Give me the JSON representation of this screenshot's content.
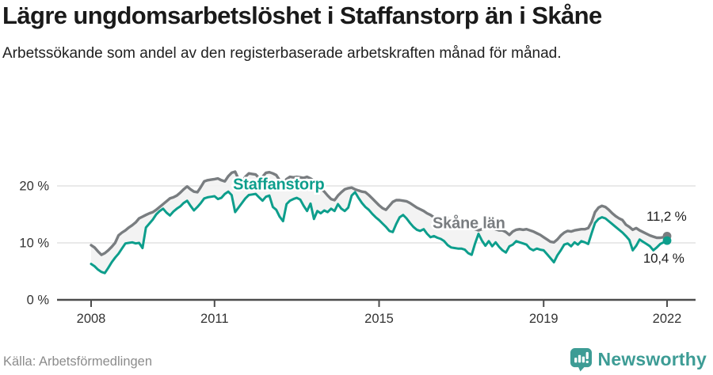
{
  "header": {
    "title": "Lägre ungdomsarbetslöshet i Staffanstorp än i Skåne",
    "subtitle": "Arbetssökande som andel av den registerbaserade arbetskraften månad för månad."
  },
  "footer": {
    "source": "Källa: Arbetsförmedlingen",
    "brand": "Newsworthy",
    "brand_icon": "newsworthy-chart-bubble-icon"
  },
  "colors": {
    "staffanstorp": "#0d9e8c",
    "skane": "#797d80",
    "band": "#f2f2f2",
    "grid": "#dcdcdc",
    "axis": "#4c4c4c",
    "tick_text": "#333333",
    "value_text": "#1d1d1d",
    "brand": "#3d9c95"
  },
  "chart_data": {
    "type": "line",
    "title": "Lägre ungdomsarbetslöshet i Staffanstorp än i Skåne",
    "subtitle": "Arbetssökande som andel av den registerbaserade arbetskraften månad för månad.",
    "x_unit": "month",
    "x_start": "2008-01",
    "x_end": "2022-01",
    "points_per_series": 169,
    "xlim_years": [
      2007.15,
      2022.7
    ],
    "ylim": [
      0,
      24
    ],
    "grid": "horizontal",
    "x_ticks": [
      {
        "value": 2008,
        "label": "2008"
      },
      {
        "value": 2011,
        "label": "2011"
      },
      {
        "value": 2015,
        "label": "2015"
      },
      {
        "value": 2019,
        "label": "2019"
      },
      {
        "value": 2022,
        "label": "2022"
      }
    ],
    "y_ticks": [
      {
        "value": 0,
        "label": "0 %"
      },
      {
        "value": 10,
        "label": "10 %"
      },
      {
        "value": 20,
        "label": "20 %"
      }
    ],
    "series": [
      {
        "name": "Skåne län",
        "color_key": "skane",
        "end_value_label": "11,2 %",
        "end_value": 11.2,
        "values": [
          9.6,
          9.2,
          8.5,
          7.9,
          8.2,
          8.7,
          9.3,
          10.0,
          11.3,
          11.8,
          12.2,
          12.7,
          13.1,
          13.6,
          14.3,
          14.6,
          14.9,
          15.2,
          15.4,
          15.8,
          16.3,
          16.8,
          17.3,
          17.8,
          18.0,
          18.3,
          18.8,
          19.4,
          19.9,
          19.4,
          19.0,
          18.9,
          19.8,
          20.8,
          21.0,
          21.1,
          21.2,
          21.3,
          21.0,
          20.8,
          21.7,
          22.3,
          22.5,
          21.2,
          20.7,
          21.6,
          22.2,
          22.1,
          22.0,
          21.4,
          21.6,
          22.3,
          22.4,
          22.2,
          21.9,
          21.0,
          20.4,
          21.2,
          21.6,
          21.5,
          21.6,
          21.5,
          21.4,
          21.6,
          21.3,
          20.9,
          20.3,
          19.5,
          19.0,
          18.3,
          17.7,
          17.5,
          18.3,
          18.9,
          19.4,
          19.6,
          19.7,
          19.4,
          19.2,
          19.0,
          18.9,
          18.4,
          17.8,
          17.2,
          16.6,
          16.1,
          15.8,
          16.5,
          17.2,
          17.5,
          17.5,
          17.4,
          17.3,
          17.0,
          16.6,
          16.2,
          15.9,
          15.6,
          15.2,
          14.9,
          14.5,
          14.2,
          13.9,
          14.1,
          14.3,
          14.0,
          13.7,
          13.5,
          13.4,
          13.2,
          13.0,
          12.7,
          12.4,
          12.2,
          12.4,
          12.7,
          12.9,
          12.6,
          12.4,
          12.2,
          12.2,
          11.9,
          11.4,
          12.0,
          12.3,
          12.4,
          12.3,
          12.4,
          12.2,
          12.0,
          11.7,
          11.4,
          11.0,
          10.6,
          10.2,
          10.1,
          10.6,
          11.3,
          11.8,
          12.1,
          12.0,
          12.2,
          12.3,
          12.4,
          12.4,
          12.6,
          13.7,
          15.4,
          16.2,
          16.5,
          16.3,
          15.8,
          15.2,
          14.7,
          14.3,
          14.0,
          13.2,
          12.8,
          12.3,
          12.6,
          12.2,
          11.9,
          11.6,
          11.3,
          11.1,
          10.9,
          10.9,
          11.0,
          11.2
        ]
      },
      {
        "name": "Staffanstorp",
        "color_key": "staffanstorp",
        "end_value_label": "10,4 %",
        "end_value": 10.4,
        "values": [
          6.3,
          5.9,
          5.3,
          4.9,
          4.7,
          5.6,
          6.6,
          7.4,
          8.1,
          9.0,
          9.9,
          10.0,
          10.1,
          9.9,
          10.0,
          9.1,
          12.7,
          13.4,
          14.1,
          15.0,
          15.6,
          16.0,
          15.3,
          14.8,
          15.5,
          16.0,
          16.4,
          17.0,
          17.4,
          16.5,
          15.7,
          16.3,
          17.0,
          17.8,
          18.0,
          18.1,
          18.2,
          17.7,
          17.9,
          18.6,
          19.0,
          18.4,
          15.4,
          16.2,
          17.0,
          17.8,
          18.4,
          18.5,
          18.6,
          18.0,
          17.4,
          18.1,
          18.3,
          16.3,
          15.8,
          14.6,
          13.8,
          16.8,
          17.4,
          17.7,
          17.9,
          17.6,
          16.5,
          15.6,
          16.9,
          14.2,
          15.6,
          15.2,
          15.7,
          15.4,
          16.0,
          15.6,
          16.8,
          16.0,
          15.6,
          16.2,
          18.3,
          18.9,
          17.9,
          17.0,
          16.3,
          15.8,
          15.1,
          14.5,
          14.0,
          13.4,
          12.8,
          12.1,
          11.9,
          13.3,
          14.5,
          14.9,
          14.3,
          13.5,
          12.8,
          12.3,
          12.1,
          12.4,
          11.6,
          11.0,
          11.2,
          10.9,
          10.7,
          10.3,
          9.6,
          9.2,
          9.1,
          9.0,
          9.0,
          8.8,
          8.2,
          7.9,
          9.9,
          11.6,
          10.4,
          9.5,
          10.3,
          9.4,
          10.1,
          9.3,
          8.7,
          8.3,
          9.4,
          9.7,
          10.3,
          10.1,
          9.9,
          9.7,
          9.0,
          8.7,
          9.0,
          8.8,
          8.7,
          8.0,
          7.3,
          6.6,
          7.8,
          8.7,
          9.7,
          9.9,
          9.4,
          10.1,
          9.7,
          10.3,
          10.1,
          9.8,
          11.7,
          13.5,
          14.2,
          14.5,
          14.3,
          13.8,
          13.3,
          12.8,
          12.3,
          11.8,
          11.2,
          10.5,
          8.7,
          9.5,
          10.6,
          10.2,
          9.8,
          9.4,
          8.7,
          9.2,
          9.8,
          10.1,
          10.4
        ]
      }
    ],
    "annotations": [
      {
        "id": "series-label-staffanstorp",
        "text": "Staffanstorp",
        "year": 2011.45,
        "value": 19.35,
        "color": "#0d9e8c",
        "bold": true,
        "halo": true,
        "size": 20
      },
      {
        "id": "series-label-skane",
        "text": "Skåne län",
        "year": 2016.3,
        "value": 12.55,
        "color": "#797d80",
        "bold": true,
        "halo": true,
        "size": 20
      },
      {
        "id": "end-value-skane",
        "text": "11,2 %",
        "year": 2021.5,
        "value": 13.9,
        "color": "#1d1d1d",
        "bold": false,
        "halo": true,
        "size": 17
      },
      {
        "id": "end-value-staffanstorp",
        "text": "10,4 %",
        "year": 2021.42,
        "value": 6.55,
        "color": "#1d1d1d",
        "bold": false,
        "halo": true,
        "size": 17
      }
    ],
    "legend_position": "inline-labels"
  }
}
